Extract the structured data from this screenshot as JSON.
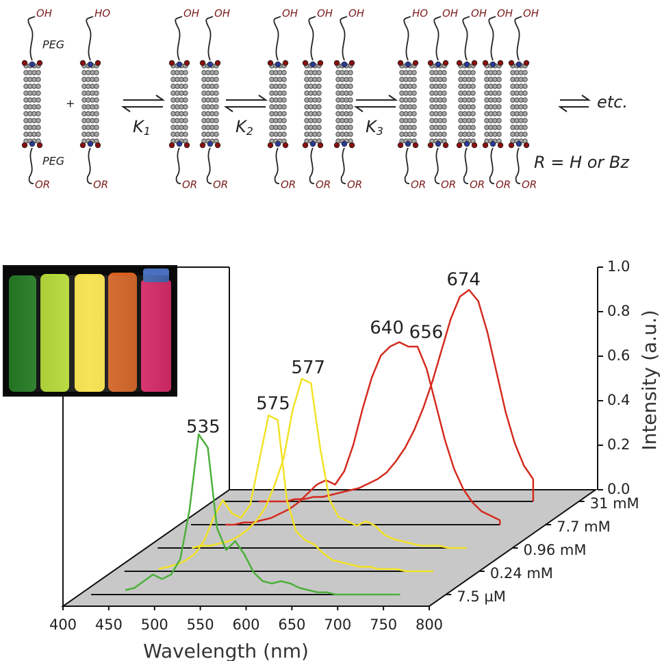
{
  "scheme": {
    "top_groups": [
      "OH",
      "HO",
      "OH",
      "OH",
      "OH",
      "OH",
      "OH",
      "HO",
      "OH",
      "OH",
      "OH",
      "OH"
    ],
    "bottom_groups": [
      "OR",
      "OR",
      "OR",
      "OR",
      "OR",
      "OR",
      "OR",
      "OR",
      "OR",
      "OR",
      "OR",
      "OR"
    ],
    "peg_labels": [
      "PEG",
      "PEG"
    ],
    "plus": "+",
    "constants": [
      {
        "symbol": "K",
        "sub": "1"
      },
      {
        "symbol": "K",
        "sub": "2"
      },
      {
        "symbol": "K",
        "sub": "3"
      }
    ],
    "etc": "etc.",
    "r_definition": "R = H or Bz"
  },
  "chart_data": {
    "type": "waterfall",
    "x_label": "Wavelength (nm)",
    "y_label": "Intensity (a.u.)",
    "xlim": [
      400,
      800
    ],
    "xticks": [
      400,
      450,
      500,
      550,
      600,
      650,
      700,
      750,
      800
    ],
    "ylim": [
      0,
      1
    ],
    "yticks": [
      {
        "value": 0,
        "label": "0.0"
      },
      {
        "value": 0.2,
        "label": "0.2"
      },
      {
        "value": 0.4,
        "label": "0.4"
      },
      {
        "value": 0.6,
        "label": "0.6"
      },
      {
        "value": 0.8,
        "label": "0.8"
      },
      {
        "value": 1,
        "label": "1.0"
      }
    ],
    "x": [
      450,
      460,
      470,
      480,
      490,
      500,
      510,
      520,
      530,
      540,
      550,
      560,
      570,
      580,
      590,
      600,
      610,
      620,
      630,
      640,
      650,
      660,
      670,
      680,
      690,
      700,
      710,
      720,
      730,
      740,
      750
    ],
    "series": [
      {
        "name": "7.5 µM",
        "color": "#4cb03a",
        "peaks": [
          535
        ],
        "values": [
          0.02,
          0.03,
          0.06,
          0.09,
          0.07,
          0.09,
          0.16,
          0.38,
          0.72,
          0.66,
          0.3,
          0.2,
          0.24,
          0.18,
          0.1,
          0.06,
          0.05,
          0.06,
          0.05,
          0.03,
          0.02,
          0.01,
          0.01,
          0,
          0,
          0,
          0,
          0,
          0,
          0,
          0
        ]
      },
      {
        "name": "0.24 mM",
        "color": "#f2e226",
        "peaks": [
          575
        ],
        "values": [
          0.01,
          0.02,
          0.03,
          0.05,
          0.08,
          0.14,
          0.24,
          0.32,
          0.26,
          0.24,
          0.3,
          0.5,
          0.7,
          0.68,
          0.32,
          0.18,
          0.14,
          0.12,
          0.08,
          0.05,
          0.04,
          0.03,
          0.02,
          0.02,
          0.01,
          0.01,
          0.01,
          0,
          0,
          0,
          0
        ]
      },
      {
        "name": "0.96 mM",
        "color": "#f2e226",
        "peaks": [
          577
        ],
        "values": [
          0,
          0.01,
          0.01,
          0.02,
          0.03,
          0.05,
          0.08,
          0.12,
          0.18,
          0.28,
          0.4,
          0.62,
          0.76,
          0.74,
          0.45,
          0.22,
          0.14,
          0.12,
          0.1,
          0.12,
          0.1,
          0.06,
          0.04,
          0.03,
          0.02,
          0.01,
          0.01,
          0.01,
          0,
          0,
          0
        ]
      },
      {
        "name": "7.7 mM",
        "color": "#d42a1e",
        "peaks": [
          640,
          656
        ],
        "values": [
          0,
          0,
          0.01,
          0.01,
          0.02,
          0.03,
          0.05,
          0.07,
          0.1,
          0.14,
          0.18,
          0.2,
          0.18,
          0.24,
          0.36,
          0.52,
          0.66,
          0.76,
          0.8,
          0.82,
          0.8,
          0.8,
          0.7,
          0.54,
          0.38,
          0.25,
          0.16,
          0.1,
          0.06,
          0.04,
          0.02
        ]
      },
      {
        "name": "31 mM",
        "color": "#d42a1e",
        "peaks": [
          674
        ],
        "values": [
          0,
          0,
          0,
          0,
          0.01,
          0.01,
          0.02,
          0.02,
          0.03,
          0.04,
          0.05,
          0.06,
          0.08,
          0.1,
          0.13,
          0.18,
          0.24,
          0.32,
          0.42,
          0.54,
          0.68,
          0.82,
          0.92,
          0.95,
          0.9,
          0.76,
          0.58,
          0.4,
          0.26,
          0.16,
          0.1
        ]
      }
    ]
  }
}
